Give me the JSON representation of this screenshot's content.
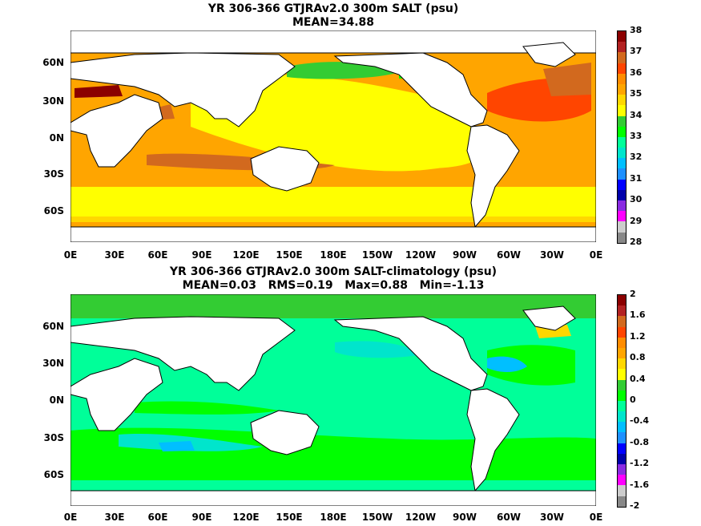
{
  "panels": [
    {
      "title": "YR 306-366 GTJRAv2.0 300m SALT (psu)",
      "subtitle": "MEAN=34.88",
      "colorbar": {
        "labels": [
          "38",
          "37",
          "36",
          "35",
          "34",
          "33",
          "32",
          "31",
          "30",
          "29",
          "28"
        ],
        "colors": [
          "#8b0000",
          "#b22222",
          "#d2691e",
          "#ff4500",
          "#ff8c00",
          "#ffa500",
          "#ffd700",
          "#ffff00",
          "#33cc33",
          "#00ff00",
          "#00ff99",
          "#00e5cc",
          "#00bfff",
          "#1e90ff",
          "#0000ff",
          "#0000aa",
          "#8a2be2",
          "#ff00ff",
          "#cccccc",
          "#888888"
        ]
      },
      "colors": {
        "background": "#ffa500",
        "high": "#ffff00",
        "low": "#ffd700",
        "land": "#ffffff"
      }
    },
    {
      "title": "YR 306-366 GTJRAv2.0 300m SALT-climatology (psu)",
      "subtitle": "MEAN=0.03   RMS=0.19   Max=0.88   Min=-1.13",
      "colorbar": {
        "labels": [
          "2",
          "1.6",
          "1.2",
          "0.8",
          "0.4",
          "0",
          "-0.4",
          "-0.8",
          "-1.2",
          "-1.6",
          "-2"
        ],
        "colors": [
          "#8b0000",
          "#b22222",
          "#d2691e",
          "#ff4500",
          "#ff8c00",
          "#ffa500",
          "#ffd700",
          "#ffff00",
          "#33cc33",
          "#00ff00",
          "#00ff99",
          "#00e5cc",
          "#00bfff",
          "#1e90ff",
          "#0000ff",
          "#0000aa",
          "#8a2be2",
          "#ff00ff",
          "#cccccc",
          "#888888"
        ]
      },
      "colors": {
        "background": "#00ff99",
        "high": "#00ff00",
        "low": "#00e5cc",
        "land": "#ffffff"
      }
    }
  ],
  "axes": {
    "lat_labels": [
      "60N",
      "30N",
      "0N",
      "30S",
      "60S"
    ],
    "lon_labels": [
      "0E",
      "30E",
      "60E",
      "90E",
      "120E",
      "150E",
      "180E",
      "150W",
      "120W",
      "90W",
      "60W",
      "30W",
      "0E"
    ]
  }
}
